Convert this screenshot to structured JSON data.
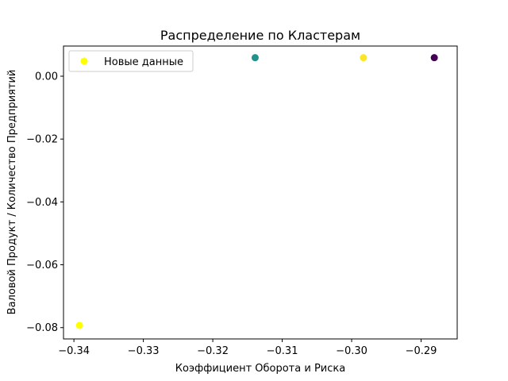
{
  "chart_data": {
    "type": "scatter",
    "title": "Распределение по Кластерам",
    "xlabel": "Коэффициент Оборота и Риска",
    "ylabel": "Валовой Продукт / Количество Предприятий",
    "xlim": [
      -0.3415,
      -0.2848
    ],
    "ylim": [
      -0.0836,
      0.0096
    ],
    "xticks": [
      -0.34,
      -0.33,
      -0.32,
      -0.31,
      -0.3,
      -0.29
    ],
    "xtick_labels": [
      "−0.34",
      "−0.33",
      "−0.32",
      "−0.31",
      "−0.30",
      "−0.29"
    ],
    "yticks": [
      0.0,
      -0.02,
      -0.04,
      -0.06,
      -0.08
    ],
    "ytick_labels": [
      "0.00",
      "−0.02",
      "−0.04",
      "−0.06",
      "−0.08"
    ],
    "grid": false,
    "legend": {
      "placement": "top-left",
      "entries": [
        {
          "label": "Новые данные",
          "color": "#ffff00"
        }
      ]
    },
    "series": [
      {
        "points": [
          {
            "x": -0.3139,
            "y": 0.0059,
            "color": "#21918c"
          },
          {
            "x": -0.2983,
            "y": 0.0059,
            "color": "#fde725"
          },
          {
            "x": -0.2881,
            "y": 0.0059,
            "color": "#440154"
          }
        ]
      },
      {
        "name": "Новые данные",
        "points": [
          {
            "x": -0.3392,
            "y": -0.0793,
            "color": "#ffff00"
          }
        ]
      }
    ]
  }
}
